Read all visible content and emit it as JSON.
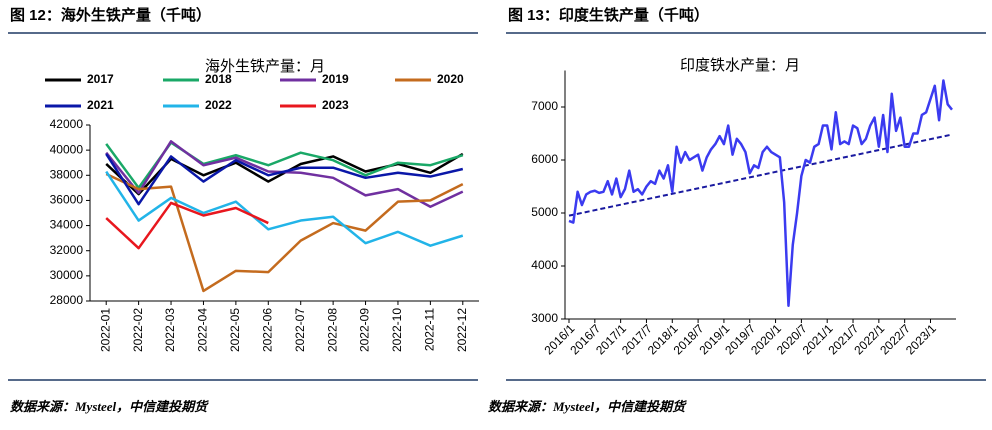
{
  "figures": [
    {
      "caption": "图 12：海外生铁产量（千吨）",
      "source": "数据来源：Mysteel，中信建投期货"
    },
    {
      "caption": "图 13：印度生铁产量（千吨）",
      "source": "数据来源：Mysteel，中信建投期货"
    }
  ],
  "chart_data": [
    {
      "type": "line",
      "title": "海外生铁产量：月",
      "categories": [
        "2022-01",
        "2022-02",
        "2022-03",
        "2022-04",
        "2022-05",
        "2022-06",
        "2022-07",
        "2022-08",
        "2022-09",
        "2022-10",
        "2022-11",
        "2022-12"
      ],
      "ylim": [
        28000,
        42000
      ],
      "yticks": [
        28000,
        30000,
        32000,
        34000,
        36000,
        38000,
        40000,
        42000
      ],
      "series": [
        {
          "name": "2017",
          "color": "#000000",
          "values": [
            38900,
            36500,
            39300,
            38000,
            39000,
            37500,
            38900,
            39500,
            38300,
            38900,
            38200,
            39700
          ]
        },
        {
          "name": "2018",
          "color": "#1aa867",
          "values": [
            40500,
            37000,
            40600,
            38900,
            39600,
            38800,
            39800,
            39200,
            38000,
            39000,
            38800,
            39600
          ]
        },
        {
          "name": "2019",
          "color": "#7030a0",
          "values": [
            39800,
            36600,
            40700,
            38800,
            39400,
            38300,
            38200,
            37800,
            36400,
            36900,
            35500,
            36700
          ]
        },
        {
          "name": "2020",
          "color": "#c46b1e",
          "values": [
            38100,
            36900,
            37100,
            28800,
            30400,
            30300,
            32800,
            34200,
            33600,
            35900,
            36000,
            37300
          ]
        },
        {
          "name": "2021",
          "color": "#0a17a8",
          "values": [
            39700,
            35700,
            39500,
            37500,
            39200,
            38000,
            38600,
            38600,
            37800,
            38200,
            37900,
            38500
          ]
        },
        {
          "name": "2022",
          "color": "#22b4e8",
          "values": [
            38300,
            34400,
            36200,
            35000,
            35900,
            33700,
            34400,
            34700,
            32600,
            33500,
            32400,
            33200
          ]
        },
        {
          "name": "2023",
          "color": "#e8171e",
          "values": [
            34600,
            32200,
            35800,
            34800,
            35400,
            34200,
            null,
            null,
            null,
            null,
            null,
            null
          ]
        }
      ]
    },
    {
      "type": "line",
      "title": "印度铁水产量：月",
      "categories": [
        "2016/1",
        null,
        null,
        null,
        null,
        null,
        "2016/7",
        null,
        null,
        null,
        null,
        null,
        "2017/1",
        null,
        null,
        null,
        null,
        null,
        "2017/7",
        null,
        null,
        null,
        null,
        null,
        "2018/1",
        null,
        null,
        null,
        null,
        null,
        "2018/7",
        null,
        null,
        null,
        null,
        null,
        "2019/1",
        null,
        null,
        null,
        null,
        null,
        "2019/7",
        null,
        null,
        null,
        null,
        null,
        "2020/1",
        null,
        null,
        null,
        null,
        null,
        "2020/7",
        null,
        null,
        null,
        null,
        null,
        "2021/1",
        null,
        null,
        null,
        null,
        null,
        "2021/7",
        null,
        null,
        null,
        null,
        null,
        "2022/1",
        null,
        null,
        null,
        null,
        null,
        "2022/7",
        null,
        null,
        null,
        null,
        null,
        "2023/1",
        null,
        null,
        null,
        null,
        null
      ],
      "ylim": [
        3000,
        7500
      ],
      "yticks": [
        3000,
        4000,
        5000,
        6000,
        7000
      ],
      "series": [
        {
          "color": "#3b3bf0",
          "values": [
            4850,
            4820,
            5400,
            5150,
            5350,
            5400,
            5420,
            5380,
            5400,
            5600,
            5350,
            5650,
            5300,
            5450,
            5800,
            5400,
            5450,
            5350,
            5500,
            5600,
            5550,
            5800,
            5650,
            5900,
            5400,
            6250,
            5950,
            6150,
            6000,
            6050,
            6100,
            5800,
            6050,
            6200,
            6300,
            6450,
            6300,
            6650,
            6100,
            6400,
            6300,
            6150,
            5750,
            5900,
            5850,
            6150,
            6250,
            6150,
            6100,
            6050,
            5200,
            3250,
            4400,
            5000,
            5700,
            6000,
            5950,
            6250,
            6300,
            6650,
            6650,
            6200,
            6900,
            6300,
            6350,
            6300,
            6650,
            6600,
            6300,
            6400,
            6650,
            6800,
            6250,
            6850,
            6150,
            7250,
            6550,
            6800,
            6250,
            6250,
            6500,
            6500,
            6850,
            6900,
            7150,
            7400,
            6750,
            7500,
            7050,
            6950
          ]
        }
      ],
      "trend": {
        "color": "#1a1aa0",
        "start": 4950,
        "end": 6480
      }
    }
  ]
}
